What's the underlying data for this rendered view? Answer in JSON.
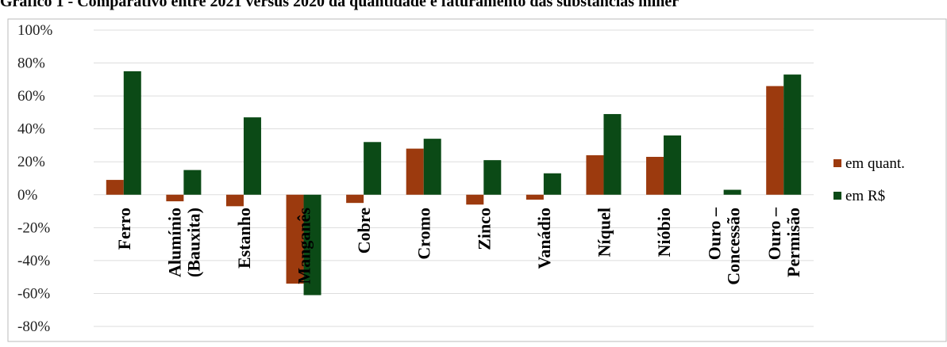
{
  "chart_data": {
    "type": "bar",
    "title": "Gráfico 1 - Comparativo entre 2021 versus 2020 da quantidade e faturamento das substâncias miner",
    "categories": [
      "Ferro",
      "Alumínio\n(Bauxita)",
      "Estanho",
      "Manganês",
      "Cobre",
      "Cromo",
      "Zinco",
      "Vanádio",
      "Níquel",
      "Nióbio",
      "Ouro –\nConcessão",
      "Ouro –\nPermisão"
    ],
    "series": [
      {
        "name": "em quant.",
        "color": "#9c3a0e",
        "values": [
          9,
          -4,
          -7,
          -54,
          -5,
          28,
          -6,
          -3,
          24,
          23,
          0,
          66
        ]
      },
      {
        "name": "em R$",
        "color": "#0b4a16",
        "values": [
          75,
          15,
          47,
          -61,
          32,
          34,
          21,
          13,
          49,
          36,
          3,
          73
        ]
      }
    ],
    "ylim": [
      -80,
      100
    ],
    "yticks": [
      {
        "value": -80,
        "label": "-80%"
      },
      {
        "value": -60,
        "label": "-60%"
      },
      {
        "value": -40,
        "label": "-40%"
      },
      {
        "value": -20,
        "label": "-20%"
      },
      {
        "value": 0,
        "label": "0%"
      },
      {
        "value": 20,
        "label": "20%"
      },
      {
        "value": 40,
        "label": "40%"
      },
      {
        "value": 60,
        "label": "60%"
      },
      {
        "value": 80,
        "label": "80%"
      },
      {
        "value": 100,
        "label": "100%"
      }
    ],
    "grid": true,
    "legend": "right"
  }
}
